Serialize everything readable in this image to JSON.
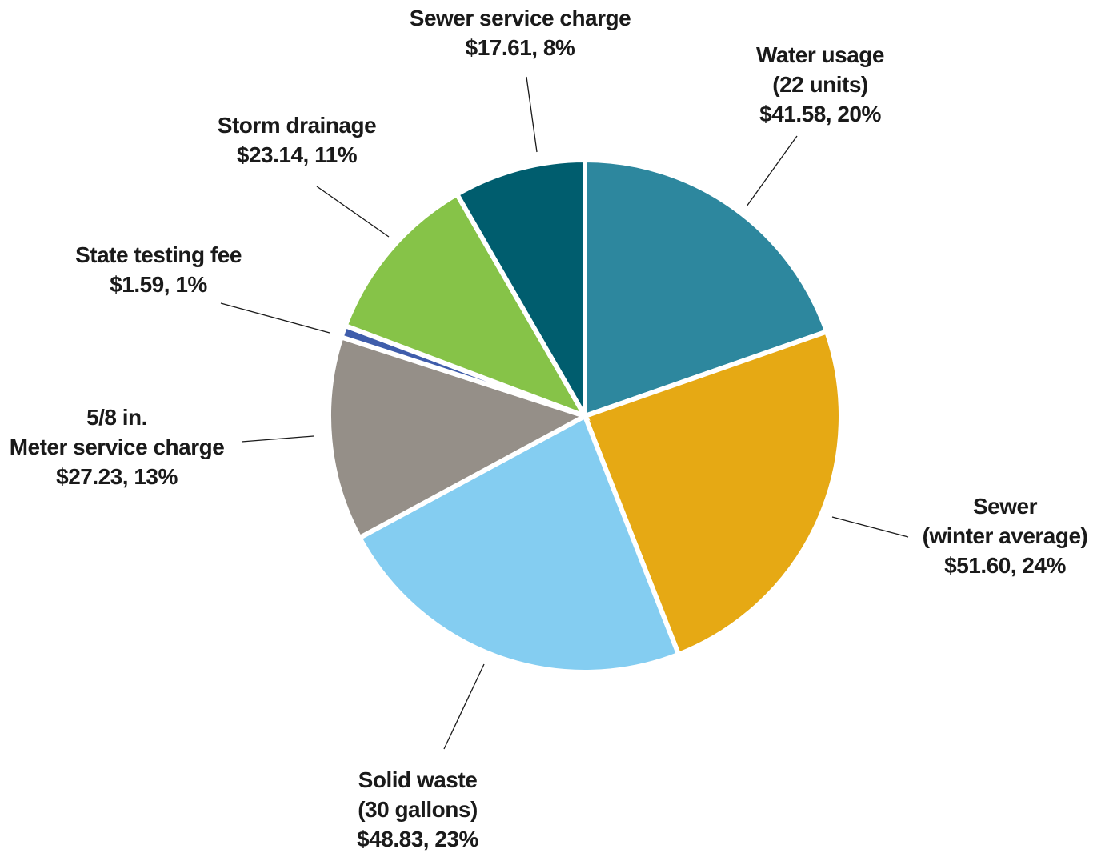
{
  "chart_data": {
    "type": "pie",
    "title": "",
    "start_angle_deg": 90,
    "direction": "clockwise",
    "slices": [
      {
        "lines": [
          "Water usage",
          "(22 units)",
          "$41.58, 20%"
        ],
        "value": 41.58,
        "percent": 20,
        "color": "#2d879e"
      },
      {
        "lines": [
          "Sewer",
          "(winter average)",
          "$51.60, 24%"
        ],
        "value": 51.6,
        "percent": 24,
        "color": "#e6a914"
      },
      {
        "lines": [
          "Solid waste",
          "(30 gallons)",
          "$48.83, 23%"
        ],
        "value": 48.83,
        "percent": 23,
        "color": "#84cdf1"
      },
      {
        "lines": [
          "5/8 in.",
          "Meter service charge",
          "$27.23, 13%"
        ],
        "value": 27.23,
        "percent": 13,
        "color": "#958f88"
      },
      {
        "lines": [
          "State testing fee",
          "$1.59, 1%"
        ],
        "value": 1.59,
        "percent": 1,
        "color": "#3f5dab"
      },
      {
        "lines": [
          "Storm drainage",
          "$23.14, 11%"
        ],
        "value": 23.14,
        "percent": 11,
        "color": "#86c348"
      },
      {
        "lines": [
          "Sewer service charge",
          "$17.61, 8%"
        ],
        "value": 17.61,
        "percent": 8,
        "color": "#005d6e"
      }
    ]
  }
}
